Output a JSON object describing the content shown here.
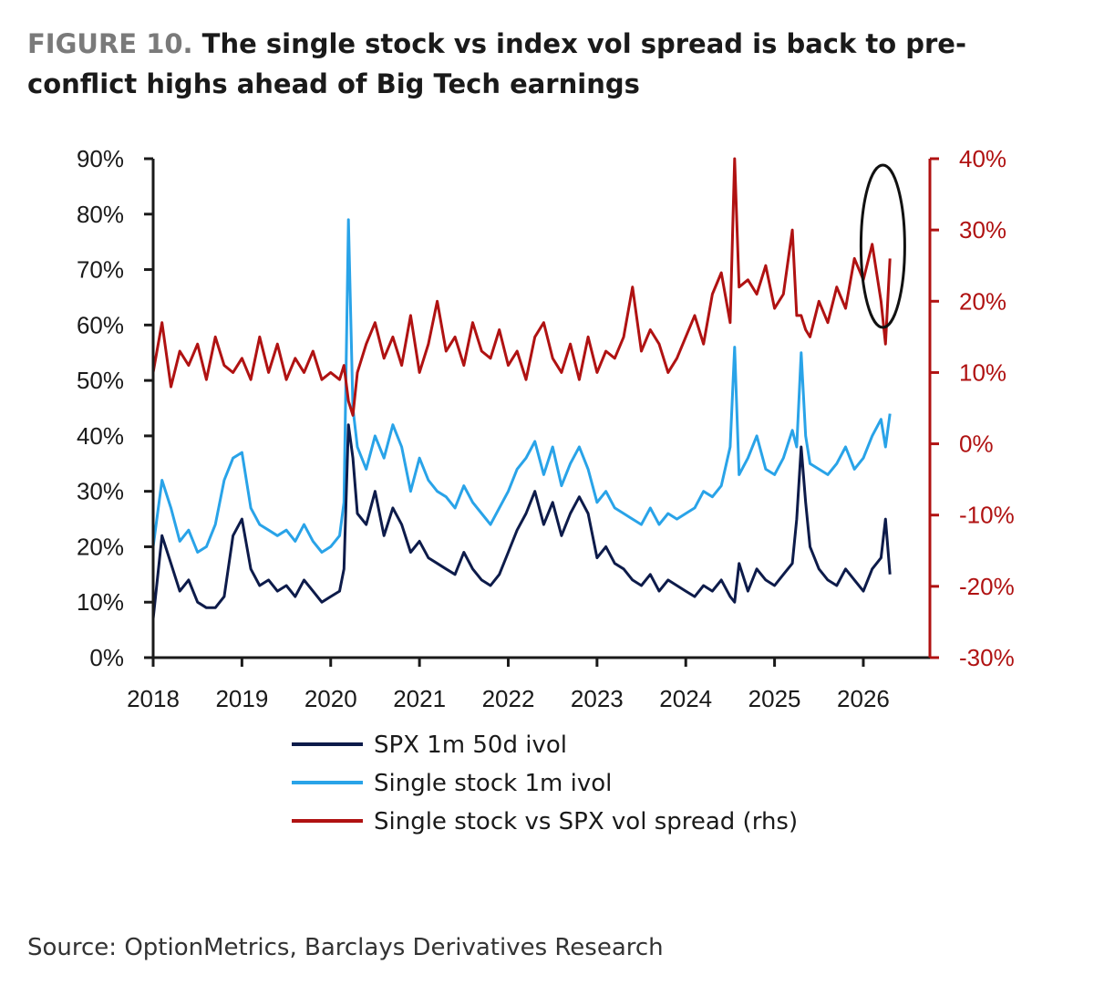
{
  "title_prefix": "FIGURE 10.",
  "title_text": "The single stock vs index vol spread is back to pre-conflict highs ahead of Big Tech earnings",
  "source": "Source: OptionMetrics, Barclays Derivatives Research",
  "colors": {
    "spx": "#0d1b4a",
    "single": "#29a3e8",
    "spread": "#b01212",
    "axis_left": "#1a1a1a",
    "axis_right": "#b01212"
  },
  "chart_data": {
    "type": "line",
    "title": "The single stock vs index vol spread is back to pre-conflict highs ahead of Big Tech earnings",
    "xlabel": "",
    "ylabel": "",
    "x_ticks": [
      "2018",
      "2019",
      "2020",
      "2021",
      "2022",
      "2023",
      "2024",
      "2025",
      "2026"
    ],
    "y_left_ticks": [
      "0%",
      "10%",
      "20%",
      "30%",
      "40%",
      "50%",
      "60%",
      "70%",
      "80%",
      "90%"
    ],
    "y_right_ticks": [
      "-30%",
      "-20%",
      "-10%",
      "0%",
      "10%",
      "20%",
      "30%",
      "40%"
    ],
    "ylim_left": [
      0,
      90
    ],
    "ylim_right": [
      -30,
      40
    ],
    "xlim": [
      2018.0,
      2026.75
    ],
    "legend_position": "bottom",
    "grid": false,
    "annotation": "ellipse highlighting latest readings (early 2026)",
    "series": [
      {
        "name": "SPX 1m 50d ivol",
        "axis": "left",
        "x": [
          2018.0,
          2018.1,
          2018.2,
          2018.3,
          2018.4,
          2018.5,
          2018.6,
          2018.7,
          2018.8,
          2018.9,
          2019.0,
          2019.1,
          2019.2,
          2019.3,
          2019.4,
          2019.5,
          2019.6,
          2019.7,
          2019.8,
          2019.9,
          2020.0,
          2020.1,
          2020.15,
          2020.2,
          2020.25,
          2020.3,
          2020.4,
          2020.5,
          2020.6,
          2020.7,
          2020.8,
          2020.9,
          2021.0,
          2021.1,
          2021.2,
          2021.3,
          2021.4,
          2021.5,
          2021.6,
          2021.7,
          2021.8,
          2021.9,
          2022.0,
          2022.1,
          2022.2,
          2022.3,
          2022.4,
          2022.5,
          2022.6,
          2022.7,
          2022.8,
          2022.9,
          2023.0,
          2023.1,
          2023.2,
          2023.3,
          2023.4,
          2023.5,
          2023.6,
          2023.7,
          2023.8,
          2023.9,
          2024.0,
          2024.1,
          2024.2,
          2024.3,
          2024.4,
          2024.5,
          2024.55,
          2024.6,
          2024.7,
          2024.8,
          2024.9,
          2025.0,
          2025.1,
          2025.2,
          2025.25,
          2025.3,
          2025.35,
          2025.4,
          2025.5,
          2025.6,
          2025.7,
          2025.8,
          2025.9,
          2026.0,
          2026.1,
          2026.2,
          2026.25,
          2026.3
        ],
        "values": [
          7,
          22,
          17,
          12,
          14,
          10,
          9,
          9,
          11,
          22,
          25,
          16,
          13,
          14,
          12,
          13,
          11,
          14,
          12,
          10,
          11,
          12,
          16,
          42,
          36,
          26,
          24,
          30,
          22,
          27,
          24,
          19,
          21,
          18,
          17,
          16,
          15,
          19,
          16,
          14,
          13,
          15,
          19,
          23,
          26,
          30,
          24,
          28,
          22,
          26,
          29,
          26,
          18,
          20,
          17,
          16,
          14,
          13,
          15,
          12,
          14,
          13,
          12,
          11,
          13,
          12,
          14,
          11,
          10,
          17,
          12,
          16,
          14,
          13,
          15,
          17,
          25,
          38,
          28,
          20,
          16,
          14,
          13,
          16,
          14,
          12,
          16,
          18,
          25,
          15
        ]
      },
      {
        "name": "Single stock 1m ivol",
        "axis": "left",
        "x": [
          2018.0,
          2018.1,
          2018.2,
          2018.3,
          2018.4,
          2018.5,
          2018.6,
          2018.7,
          2018.8,
          2018.9,
          2019.0,
          2019.1,
          2019.2,
          2019.3,
          2019.4,
          2019.5,
          2019.6,
          2019.7,
          2019.8,
          2019.9,
          2020.0,
          2020.1,
          2020.15,
          2020.2,
          2020.25,
          2020.3,
          2020.4,
          2020.5,
          2020.6,
          2020.7,
          2020.8,
          2020.9,
          2021.0,
          2021.1,
          2021.2,
          2021.3,
          2021.4,
          2021.5,
          2021.6,
          2021.7,
          2021.8,
          2021.9,
          2022.0,
          2022.1,
          2022.2,
          2022.3,
          2022.4,
          2022.5,
          2022.6,
          2022.7,
          2022.8,
          2022.9,
          2023.0,
          2023.1,
          2023.2,
          2023.3,
          2023.4,
          2023.5,
          2023.6,
          2023.7,
          2023.8,
          2023.9,
          2024.0,
          2024.1,
          2024.2,
          2024.3,
          2024.4,
          2024.5,
          2024.55,
          2024.6,
          2024.7,
          2024.8,
          2024.9,
          2025.0,
          2025.1,
          2025.2,
          2025.25,
          2025.3,
          2025.35,
          2025.4,
          2025.5,
          2025.6,
          2025.7,
          2025.8,
          2025.9,
          2026.0,
          2026.1,
          2026.2,
          2026.25,
          2026.3
        ],
        "values": [
          20,
          32,
          27,
          21,
          23,
          19,
          20,
          24,
          32,
          36,
          37,
          27,
          24,
          23,
          22,
          23,
          21,
          24,
          21,
          19,
          20,
          22,
          28,
          79,
          45,
          38,
          34,
          40,
          36,
          42,
          38,
          30,
          36,
          32,
          30,
          29,
          27,
          31,
          28,
          26,
          24,
          27,
          30,
          34,
          36,
          39,
          33,
          38,
          31,
          35,
          38,
          34,
          28,
          30,
          27,
          26,
          25,
          24,
          27,
          24,
          26,
          25,
          26,
          27,
          30,
          29,
          31,
          38,
          56,
          33,
          36,
          40,
          34,
          33,
          36,
          41,
          38,
          55,
          40,
          35,
          34,
          33,
          35,
          38,
          34,
          36,
          40,
          43,
          38,
          44
        ]
      },
      {
        "name": "Single stock vs SPX vol spread (rhs)",
        "axis": "right",
        "x": [
          2018.0,
          2018.1,
          2018.2,
          2018.3,
          2018.4,
          2018.5,
          2018.6,
          2018.7,
          2018.8,
          2018.9,
          2019.0,
          2019.1,
          2019.2,
          2019.3,
          2019.4,
          2019.5,
          2019.6,
          2019.7,
          2019.8,
          2019.9,
          2020.0,
          2020.1,
          2020.15,
          2020.2,
          2020.25,
          2020.3,
          2020.4,
          2020.5,
          2020.6,
          2020.7,
          2020.8,
          2020.9,
          2021.0,
          2021.1,
          2021.2,
          2021.3,
          2021.4,
          2021.5,
          2021.6,
          2021.7,
          2021.8,
          2021.9,
          2022.0,
          2022.1,
          2022.2,
          2022.3,
          2022.4,
          2022.5,
          2022.6,
          2022.7,
          2022.8,
          2022.9,
          2023.0,
          2023.1,
          2023.2,
          2023.3,
          2023.4,
          2023.5,
          2023.6,
          2023.7,
          2023.8,
          2023.9,
          2024.0,
          2024.1,
          2024.2,
          2024.3,
          2024.4,
          2024.5,
          2024.55,
          2024.6,
          2024.7,
          2024.8,
          2024.9,
          2025.0,
          2025.1,
          2025.2,
          2025.25,
          2025.3,
          2025.35,
          2025.4,
          2025.5,
          2025.6,
          2025.7,
          2025.8,
          2025.9,
          2026.0,
          2026.1,
          2026.2,
          2026.25,
          2026.3
        ],
        "values": [
          10,
          17,
          8,
          13,
          11,
          14,
          9,
          15,
          11,
          10,
          12,
          9,
          15,
          10,
          14,
          9,
          12,
          10,
          13,
          9,
          10,
          9,
          11,
          6,
          4,
          10,
          14,
          17,
          12,
          15,
          11,
          18,
          10,
          14,
          20,
          13,
          15,
          11,
          17,
          13,
          12,
          16,
          11,
          13,
          9,
          15,
          17,
          12,
          10,
          14,
          9,
          15,
          10,
          13,
          12,
          15,
          22,
          13,
          16,
          14,
          10,
          12,
          15,
          18,
          14,
          21,
          24,
          17,
          40,
          22,
          23,
          21,
          25,
          19,
          21,
          30,
          18,
          18,
          16,
          15,
          20,
          17,
          22,
          19,
          26,
          23,
          28,
          20,
          14,
          26
        ]
      }
    ]
  }
}
